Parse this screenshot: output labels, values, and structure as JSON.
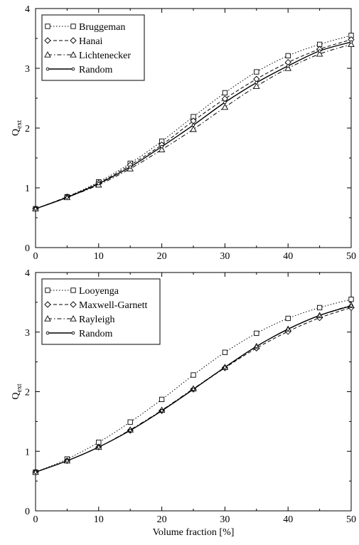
{
  "chart_data": [
    {
      "type": "line",
      "xlabel": "",
      "ylabel": "Q",
      "ylabel_sub": "ext",
      "xlim": [
        0,
        50
      ],
      "ylim": [
        0,
        4
      ],
      "xticks": [
        0,
        10,
        20,
        30,
        40,
        50
      ],
      "yticks": [
        0,
        1,
        2,
        3,
        4
      ],
      "grid": false,
      "legend_position": "top-left",
      "x": [
        0,
        5,
        10,
        15,
        20,
        25,
        30,
        35,
        40,
        45,
        50
      ],
      "series": [
        {
          "name": "Bruggeman",
          "marker": "square",
          "dash": "dotted",
          "values": [
            0.65,
            0.85,
            1.1,
            1.41,
            1.78,
            2.19,
            2.59,
            2.94,
            3.21,
            3.4,
            3.55
          ]
        },
        {
          "name": "Hanai",
          "marker": "diamond",
          "dash": "dashed",
          "values": [
            0.65,
            0.85,
            1.08,
            1.38,
            1.72,
            2.12,
            2.49,
            2.82,
            3.1,
            3.32,
            3.48
          ]
        },
        {
          "name": "Lichtenecker",
          "marker": "triangle",
          "dash": "dashdot",
          "values": [
            0.65,
            0.84,
            1.05,
            1.32,
            1.64,
            1.98,
            2.35,
            2.7,
            3.0,
            3.24,
            3.4
          ]
        },
        {
          "name": "Random",
          "marker": "circle",
          "dash": "solid",
          "values": [
            0.65,
            0.84,
            1.07,
            1.35,
            1.69,
            2.05,
            2.43,
            2.76,
            3.04,
            3.29,
            3.44
          ]
        }
      ]
    },
    {
      "type": "line",
      "xlabel": "Volume fraction [%]",
      "ylabel": "Q",
      "ylabel_sub": "ext",
      "xlim": [
        0,
        50
      ],
      "ylim": [
        0,
        4
      ],
      "xticks": [
        0,
        10,
        20,
        30,
        40,
        50
      ],
      "yticks": [
        0,
        1,
        2,
        3,
        4
      ],
      "grid": false,
      "legend_position": "top-left",
      "x": [
        0,
        5,
        10,
        15,
        20,
        25,
        30,
        35,
        40,
        45,
        50
      ],
      "series": [
        {
          "name": "Looyenga",
          "marker": "square",
          "dash": "dotted",
          "values": [
            0.65,
            0.87,
            1.15,
            1.49,
            1.87,
            2.28,
            2.66,
            2.98,
            3.23,
            3.41,
            3.55
          ]
        },
        {
          "name": "Maxwell-Garnett",
          "marker": "diamond",
          "dash": "dashed",
          "values": [
            0.65,
            0.84,
            1.07,
            1.35,
            1.68,
            2.04,
            2.4,
            2.73,
            3.01,
            3.24,
            3.41
          ]
        },
        {
          "name": "Rayleigh",
          "marker": "triangle",
          "dash": "dashdot",
          "values": [
            0.65,
            0.84,
            1.07,
            1.36,
            1.69,
            2.05,
            2.41,
            2.76,
            3.05,
            3.28,
            3.45
          ]
        },
        {
          "name": "Random",
          "marker": "circle",
          "dash": "solid",
          "values": [
            0.65,
            0.84,
            1.07,
            1.35,
            1.68,
            2.04,
            2.41,
            2.76,
            3.05,
            3.28,
            3.44
          ]
        }
      ]
    }
  ]
}
